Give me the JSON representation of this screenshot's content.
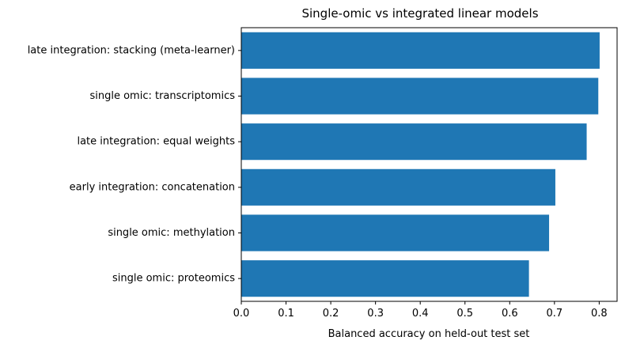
{
  "chart_data": {
    "type": "bar",
    "orientation": "horizontal",
    "title": "Single-omic vs integrated linear models",
    "xlabel": "Balanced accuracy on held-out test set",
    "ylabel": "",
    "categories": [
      "late integration: stacking (meta-learner)",
      "single omic: transcriptomics",
      "late integration: equal weights",
      "early integration: concatenation",
      "single omic: methylation",
      "single omic: proteomics"
    ],
    "values": [
      0.801,
      0.798,
      0.772,
      0.702,
      0.688,
      0.643
    ],
    "xlim": [
      0.0,
      0.84
    ],
    "xticks": [
      "0.0",
      "0.1",
      "0.2",
      "0.3",
      "0.4",
      "0.5",
      "0.6",
      "0.7",
      "0.8"
    ],
    "grid": false,
    "legend": "none",
    "bar_color": "#1f77b4"
  }
}
